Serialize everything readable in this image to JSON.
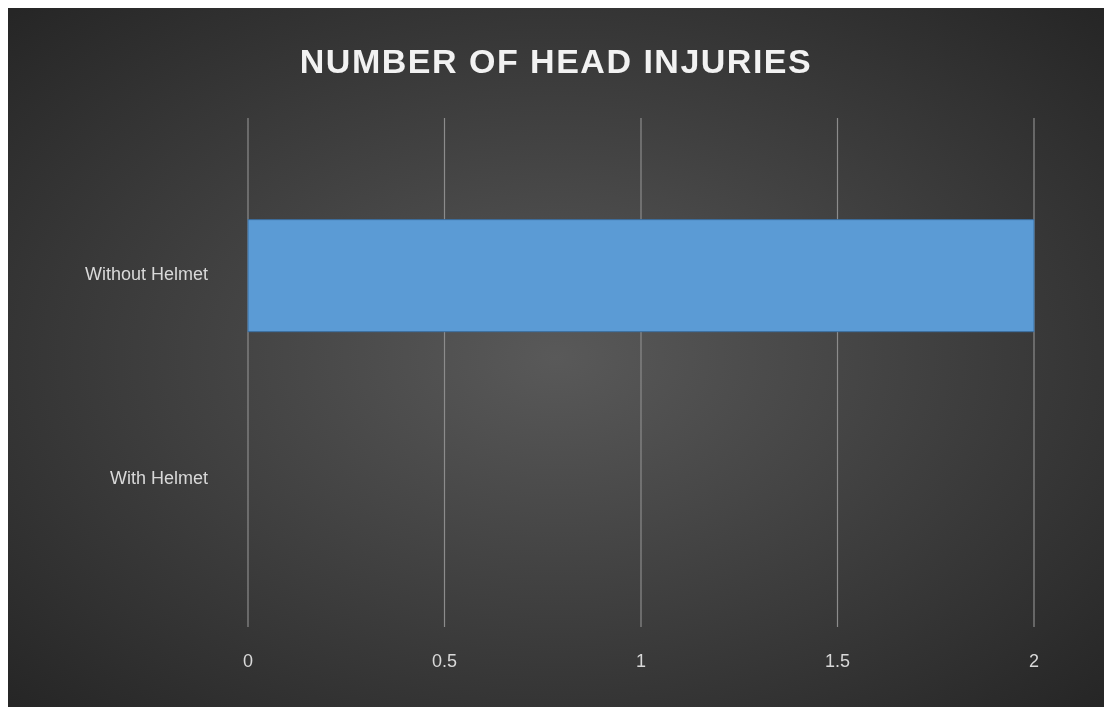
{
  "chart_data": {
    "type": "bar",
    "orientation": "horizontal",
    "title": "NUMBER OF HEAD INJURIES",
    "categories": [
      "Without Helmet",
      "With Helmet"
    ],
    "values": [
      2,
      0
    ],
    "color": "#5b9bd5",
    "xlim": [
      0,
      2
    ],
    "xticks": [
      0,
      0.5,
      1,
      1.5,
      2
    ],
    "grid": "x"
  }
}
